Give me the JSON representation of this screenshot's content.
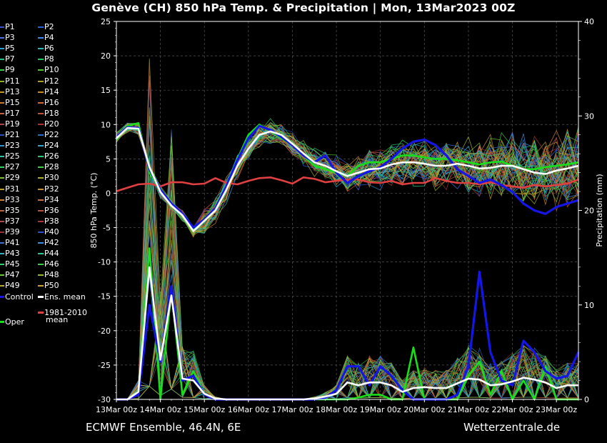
{
  "header": {
    "title": "Genève  (CH)  850 hPa Temp. & Precipitation | Mon, 13Mar2023 00Z"
  },
  "footer": {
    "left": "ECMWF Ensemble, 46.4N, 6E",
    "right": "Wetterzentrale.de"
  },
  "colors": {
    "background": "#000000",
    "grid": "#555555",
    "control": "#1515e8",
    "ens_mean": "#ffffff",
    "oper": "#18e018",
    "climate_mean": "#e04040"
  },
  "legend": {
    "members": [
      {
        "label": "P1",
        "color": "#3a4fd0"
      },
      {
        "label": "P2",
        "color": "#2a5fe0"
      },
      {
        "label": "P3",
        "color": "#4a70e8"
      },
      {
        "label": "P4",
        "color": "#3c88f0"
      },
      {
        "label": "P5",
        "color": "#2aa0d8"
      },
      {
        "label": "P6",
        "color": "#20b8b8"
      },
      {
        "label": "P7",
        "color": "#20c090"
      },
      {
        "label": "P8",
        "color": "#20c860"
      },
      {
        "label": "P9",
        "color": "#30d040"
      },
      {
        "label": "P10",
        "color": "#50c830"
      },
      {
        "label": "P11",
        "color": "#90b020"
      },
      {
        "label": "P12",
        "color": "#b0a020"
      },
      {
        "label": "P13",
        "color": "#c89820"
      },
      {
        "label": "P14",
        "color": "#d08820"
      },
      {
        "label": "P15",
        "color": "#d07828"
      },
      {
        "label": "P16",
        "color": "#d06830"
      },
      {
        "label": "P17",
        "color": "#c86038"
      },
      {
        "label": "P18",
        "color": "#c05038"
      },
      {
        "label": "P19",
        "color": "#b84040"
      },
      {
        "label": "P20",
        "color": "#b03030"
      },
      {
        "label": "P21",
        "color": "#2850c0"
      },
      {
        "label": "P22",
        "color": "#2870d0"
      },
      {
        "label": "P23",
        "color": "#3090d8"
      },
      {
        "label": "P24",
        "color": "#30a8c8"
      },
      {
        "label": "P25",
        "color": "#28c0a0"
      },
      {
        "label": "P26",
        "color": "#28c878"
      },
      {
        "label": "P27",
        "color": "#30d058"
      },
      {
        "label": "P28",
        "color": "#40c840"
      },
      {
        "label": "P29",
        "color": "#78c030"
      },
      {
        "label": "P30",
        "color": "#a8b028"
      },
      {
        "label": "P31",
        "color": "#c0a028"
      },
      {
        "label": "P32",
        "color": "#c89030"
      },
      {
        "label": "P33",
        "color": "#d08030"
      },
      {
        "label": "P34",
        "color": "#c87038"
      },
      {
        "label": "P35",
        "color": "#c06040"
      },
      {
        "label": "P36",
        "color": "#b85040"
      },
      {
        "label": "P37",
        "color": "#b04848"
      },
      {
        "label": "P38",
        "color": "#a83838"
      },
      {
        "label": "P39",
        "color": "#a03030"
      },
      {
        "label": "P40",
        "color": "#3050d0"
      },
      {
        "label": "P41",
        "color": "#3870d8"
      },
      {
        "label": "P42",
        "color": "#3890e0"
      },
      {
        "label": "P43",
        "color": "#30b0c0"
      },
      {
        "label": "P44",
        "color": "#28c898"
      },
      {
        "label": "P45",
        "color": "#30d070"
      },
      {
        "label": "P46",
        "color": "#38d048"
      },
      {
        "label": "P47",
        "color": "#68c838"
      },
      {
        "label": "P48",
        "color": "#98b830"
      },
      {
        "label": "P49",
        "color": "#b8a830"
      },
      {
        "label": "P50",
        "color": "#d0a030"
      }
    ],
    "control": "Control",
    "ens_mean": "Ens. mean",
    "climate_line1": "1981-2010",
    "climate_line2": "mean",
    "oper": "Oper"
  },
  "chart_data": {
    "type": "line",
    "xlabel": "Date (UTC)",
    "ylabel": "850 hPa Temp. (°C)",
    "y2label": "Precipitation (mm)",
    "x_ticks": [
      "13Mar 00z",
      "14Mar 00z",
      "15Mar 00z",
      "16Mar 00z",
      "17Mar 00z",
      "18Mar 00z",
      "19Mar 00z",
      "20Mar 00z",
      "21Mar 00z",
      "22Mar 00z",
      "23Mar 00z"
    ],
    "x_range_hours": [
      0,
      252
    ],
    "ylim": [
      -30,
      25
    ],
    "y_ticks": [
      25,
      20,
      15,
      10,
      5,
      0,
      -5,
      -10,
      -15,
      -20,
      -25,
      -30
    ],
    "y2lim": [
      0,
      40
    ],
    "y2_ticks": [
      40,
      30,
      20,
      10,
      0
    ],
    "grid": true,
    "hours": [
      0,
      6,
      12,
      18,
      24,
      30,
      36,
      42,
      48,
      54,
      60,
      66,
      72,
      78,
      84,
      90,
      96,
      102,
      108,
      114,
      120,
      126,
      132,
      138,
      144,
      150,
      156,
      162,
      168,
      174,
      180,
      186,
      192,
      198,
      204,
      210,
      216,
      222,
      228,
      234,
      240,
      246,
      252
    ],
    "series": [
      {
        "name": "Control",
        "kind": "temp",
        "values": [
          8.2,
          9.6,
          9.5,
          3.5,
          0.5,
          -1.5,
          -3.0,
          -5.0,
          -3.8,
          -2.2,
          1.0,
          4.8,
          8.0,
          9.8,
          9.2,
          8.2,
          7.0,
          5.5,
          4.5,
          5.5,
          3.0,
          1.5,
          2.5,
          3.2,
          3.8,
          5.0,
          6.5,
          7.5,
          7.8,
          7.0,
          5.5,
          3.5,
          2.5,
          1.5,
          2.0,
          1.2,
          0.2,
          -1.5,
          -2.5,
          -3.0,
          -2.0,
          -1.5,
          -1.0
        ]
      },
      {
        "name": "Ens. mean",
        "kind": "temp",
        "values": [
          8.0,
          9.5,
          9.4,
          3.8,
          0.2,
          -1.8,
          -3.2,
          -5.5,
          -4.0,
          -2.5,
          0.5,
          4.0,
          6.5,
          8.5,
          9.0,
          8.5,
          7.2,
          5.8,
          4.5,
          4.0,
          3.2,
          2.5,
          3.0,
          3.5,
          3.6,
          4.2,
          4.5,
          4.5,
          4.3,
          4.0,
          4.0,
          4.3,
          4.0,
          3.6,
          3.7,
          4.0,
          4.0,
          3.5,
          3.0,
          2.8,
          3.3,
          3.6,
          4.0
        ]
      },
      {
        "name": "Oper",
        "kind": "temp",
        "values": [
          7.8,
          9.8,
          10.2,
          3.0,
          0.5,
          -1.5,
          -3.0,
          -5.2,
          -4.0,
          -2.2,
          1.0,
          5.0,
          8.5,
          10.0,
          9.0,
          8.0,
          7.0,
          5.5,
          4.0,
          3.5,
          3.0,
          2.5,
          4.0,
          4.5,
          4.5,
          5.0,
          5.5,
          5.5,
          5.2,
          5.0,
          5.0,
          4.8,
          4.5,
          4.2,
          4.5,
          4.6,
          4.0,
          3.5,
          3.5,
          3.8,
          4.0,
          4.2,
          4.5
        ]
      },
      {
        "name": "1981-2010 mean",
        "kind": "temp",
        "values": [
          0.3,
          0.8,
          1.3,
          1.4,
          1.0,
          1.6,
          1.6,
          1.3,
          1.4,
          2.2,
          1.5,
          1.3,
          1.8,
          2.2,
          2.3,
          1.9,
          1.4,
          2.3,
          2.1,
          1.6,
          1.8,
          2.0,
          2.0,
          1.6,
          1.5,
          1.8,
          1.3,
          1.5,
          1.5,
          2.2,
          1.8,
          1.5,
          1.5,
          1.3,
          1.6,
          1.2,
          1.0,
          0.8,
          1.2,
          1.0,
          1.2,
          1.4,
          2.0
        ]
      },
      {
        "name": "Control",
        "kind": "precip",
        "values": [
          0,
          0,
          0.5,
          10,
          4,
          12,
          2,
          2.5,
          0.5,
          0,
          0,
          0,
          0,
          0,
          0,
          0,
          0,
          0,
          0,
          0.2,
          1,
          3.5,
          3.5,
          1.5,
          3.5,
          2.5,
          1,
          0,
          0,
          0,
          0,
          0.5,
          3.5,
          13.5,
          5,
          2,
          1.5,
          6.2,
          5,
          3,
          2.2,
          2.5,
          5
        ]
      },
      {
        "name": "Ens. mean",
        "kind": "precip",
        "values": [
          0,
          0,
          0.8,
          14,
          4.2,
          11,
          2.2,
          2,
          0.6,
          0.1,
          0,
          0,
          0,
          0,
          0,
          0,
          0,
          0,
          0.1,
          0.3,
          0.6,
          1.8,
          1.5,
          1.8,
          1.8,
          1.5,
          0.8,
          1.2,
          1.3,
          1.2,
          1.2,
          1.7,
          2.2,
          2.1,
          1.5,
          1.6,
          1.9,
          2.3,
          2.1,
          1.8,
          1.2,
          1.5,
          1.5
        ]
      },
      {
        "name": "Oper",
        "kind": "precip",
        "values": [
          0,
          0,
          0.5,
          16,
          0,
          11.5,
          0.5,
          3,
          0.5,
          0,
          0,
          0,
          0,
          0,
          0,
          0,
          0,
          0,
          0,
          0,
          0,
          0,
          0.2,
          0.5,
          0.5,
          0,
          0,
          5.5,
          0,
          0,
          0,
          0,
          2.5,
          4,
          0.5,
          3,
          0,
          2,
          0,
          3.5,
          0,
          0,
          0
        ]
      }
    ]
  }
}
